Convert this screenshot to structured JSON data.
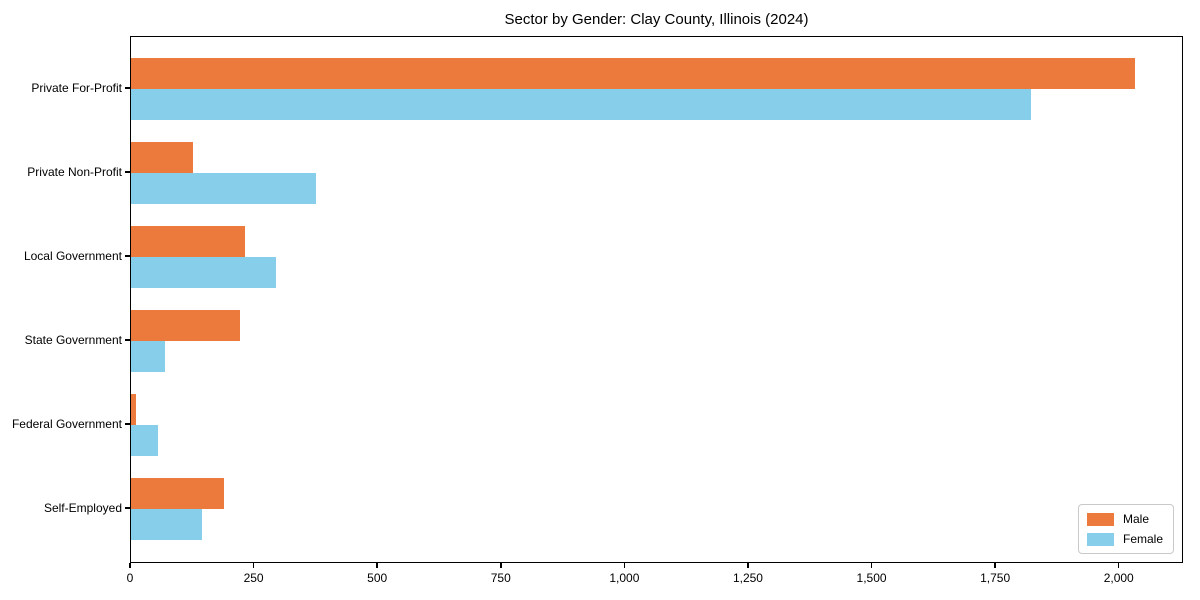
{
  "chart_data": {
    "type": "bar",
    "orientation": "horizontal",
    "title": "Sector by Gender: Clay County, Illinois (2024)",
    "categories": [
      "Private For-Profit",
      "Private Non-Profit",
      "Local Government",
      "State Government",
      "Federal Government",
      "Self-Employed"
    ],
    "series": [
      {
        "name": "Male",
        "color": "#EC7A3C",
        "values": [
          2030,
          125,
          230,
          220,
          11,
          189
        ]
      },
      {
        "name": "Female",
        "color": "#87CEEB",
        "values": [
          1820,
          375,
          293,
          69,
          54,
          144
        ]
      }
    ],
    "xlabel": "",
    "ylabel": "",
    "xlim": [
      0,
      2130
    ],
    "xticks": [
      0,
      250,
      500,
      750,
      1000,
      1250,
      1500,
      1750,
      2000
    ],
    "xtick_labels": [
      "0",
      "250",
      "500",
      "750",
      "1,000",
      "1,250",
      "1,500",
      "1,750",
      "2,000"
    ],
    "grid": false,
    "legend": {
      "position": "lower right",
      "entries": [
        "Male",
        "Female"
      ]
    },
    "colors": {
      "male": "#EC7A3C",
      "female": "#87CEEB",
      "axis": "#000000",
      "background": "#ffffff"
    }
  }
}
